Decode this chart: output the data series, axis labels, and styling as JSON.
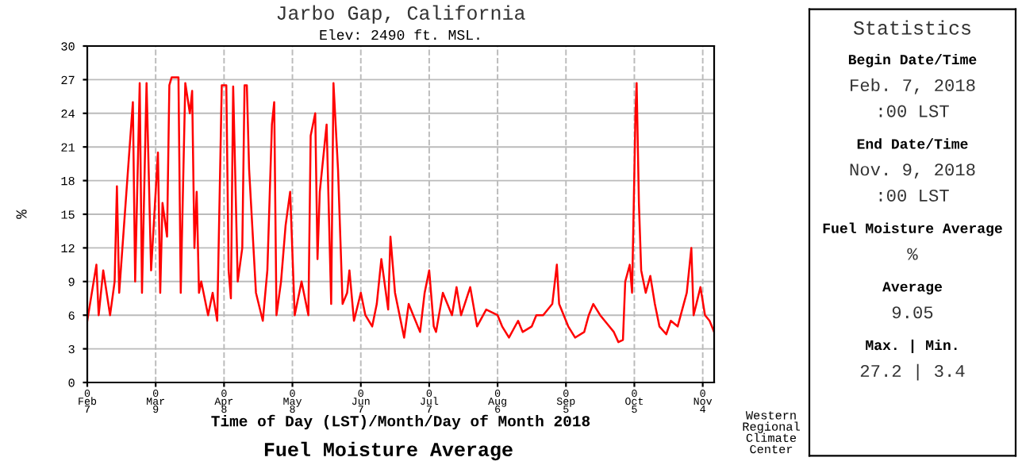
{
  "chart_data": [
    {
      "type": "line",
      "title": "Jarbo Gap, California",
      "subtitle": "Elev: 2490 ft. MSL.",
      "xlabel": "Time of Day (LST)/Month/Day of Month 2018",
      "ylabel": "%",
      "annotations": [
        "Fuel Moisture Average",
        "Western\nRegional\nClimate\nCenter"
      ],
      "series": [
        {
          "color": "#ff0000",
          "x": [
            "2018-02-07",
            "2018-02-11",
            "2018-02-12",
            "2018-02-14",
            "2018-02-17",
            "2018-02-19",
            "2018-02-20",
            "2018-02-21",
            "2018-02-27",
            "2018-02-28",
            "2018-03-02",
            "2018-03-03",
            "2018-03-05",
            "2018-03-07",
            "2018-03-10",
            "2018-03-11",
            "2018-03-12",
            "2018-03-14",
            "2018-03-15",
            "2018-03-16",
            "2018-03-19",
            "2018-03-20",
            "2018-03-22",
            "2018-03-24",
            "2018-03-25",
            "2018-03-26",
            "2018-03-27",
            "2018-03-28",
            "2018-03-29",
            "2018-04-01",
            "2018-04-03",
            "2018-04-05",
            "2018-04-07",
            "2018-04-09",
            "2018-04-10",
            "2018-04-11",
            "2018-04-12",
            "2018-04-14",
            "2018-04-16",
            "2018-04-17",
            "2018-04-18",
            "2018-04-19",
            "2018-04-22",
            "2018-04-25",
            "2018-04-27",
            "2018-04-29",
            "2018-04-30",
            "2018-05-01",
            "2018-05-03",
            "2018-05-05",
            "2018-05-07",
            "2018-05-09",
            "2018-05-12",
            "2018-05-15",
            "2018-05-16",
            "2018-05-18",
            "2018-05-19",
            "2018-05-20",
            "2018-05-23",
            "2018-05-25",
            "2018-05-26",
            "2018-05-28",
            "2018-05-30",
            "2018-06-01",
            "2018-06-02",
            "2018-06-04",
            "2018-06-07",
            "2018-06-09",
            "2018-06-12",
            "2018-06-14",
            "2018-06-16",
            "2018-06-19",
            "2018-06-20",
            "2018-06-22",
            "2018-06-26",
            "2018-06-28",
            "2018-06-30",
            "2018-07-03",
            "2018-07-05",
            "2018-07-07",
            "2018-07-09",
            "2018-07-10",
            "2018-07-13",
            "2018-07-17",
            "2018-07-19",
            "2018-07-21",
            "2018-07-25",
            "2018-07-28",
            "2018-08-01",
            "2018-08-06",
            "2018-08-08",
            "2018-08-11",
            "2018-08-15",
            "2018-08-17",
            "2018-08-21",
            "2018-08-23",
            "2018-08-26",
            "2018-08-30",
            "2018-09-01",
            "2018-09-02",
            "2018-09-06",
            "2018-09-09",
            "2018-09-13",
            "2018-09-15",
            "2018-09-17",
            "2018-09-20",
            "2018-09-22",
            "2018-09-26",
            "2018-09-28",
            "2018-09-30",
            "2018-10-01",
            "2018-10-03",
            "2018-10-04",
            "2018-10-05T12:00",
            "2018-10-06",
            "2018-10-07",
            "2018-10-08",
            "2018-10-10",
            "2018-10-12",
            "2018-10-14",
            "2018-10-16",
            "2018-10-19",
            "2018-10-21",
            "2018-10-24",
            "2018-10-28",
            "2018-10-30",
            "2018-10-31",
            "2018-11-03",
            "2018-11-05",
            "2018-11-07",
            "2018-11-09"
          ],
          "values": [
            5.5,
            10.5,
            6,
            10,
            6,
            9,
            17.5,
            8,
            25,
            9,
            26.7,
            8,
            26.7,
            10,
            20.5,
            8,
            16,
            13,
            26.5,
            27.2,
            27.2,
            8,
            26.7,
            24,
            26,
            12,
            17,
            8,
            9,
            6,
            8,
            5.5,
            26.5,
            26.5,
            10,
            7.5,
            26.4,
            9,
            12,
            26.5,
            26.5,
            19,
            8,
            5.5,
            10,
            23,
            25,
            6,
            9,
            14,
            17,
            6,
            9,
            6,
            22,
            24,
            11,
            17,
            23,
            7,
            26.7,
            19,
            7,
            8,
            10,
            5.5,
            8,
            6,
            5,
            7,
            11,
            6.5,
            13,
            8,
            4,
            7,
            6,
            4.5,
            8,
            10,
            5,
            4.5,
            8,
            6,
            8.5,
            6,
            8.5,
            5,
            6.5,
            6,
            5,
            4,
            5.5,
            4.5,
            5,
            6,
            6,
            7,
            10.5,
            7,
            5,
            4,
            4.5,
            6,
            7,
            6,
            5.5,
            4.5,
            3.6,
            3.8,
            9,
            10.5,
            8,
            24,
            26.7,
            16,
            10,
            8,
            9.5,
            7,
            5,
            4.3,
            5.5,
            5,
            8,
            12,
            6,
            8.5,
            6,
            5.5,
            4.5
          ]
        }
      ],
      "xlim": [
        "2018-02-07",
        "2018-11-09"
      ],
      "xticks": [
        {
          "value": "2018-02-07",
          "label": "0\nFeb\n7"
        },
        {
          "value": "2018-03-09",
          "label": "0\nMar\n9"
        },
        {
          "value": "2018-04-08",
          "label": "0\nApr\n8"
        },
        {
          "value": "2018-05-08",
          "label": "0\nMay\n8"
        },
        {
          "value": "2018-06-07",
          "label": "0\nJun\n7"
        },
        {
          "value": "2018-07-07",
          "label": "0\nJul\n7"
        },
        {
          "value": "2018-08-06",
          "label": "0\nAug\n6"
        },
        {
          "value": "2018-09-05",
          "label": "0\nSep\n5"
        },
        {
          "value": "2018-10-05",
          "label": "0\nOct\n5"
        },
        {
          "value": "2018-11-04",
          "label": "0\nNov\n4"
        }
      ],
      "ylim": [
        0,
        30
      ],
      "yticks": [
        0,
        3,
        6,
        9,
        12,
        15,
        18,
        21,
        24,
        27,
        30
      ],
      "grid": true,
      "legend": false,
      "marker": "none",
      "line_style": "solid"
    },
    {
      "type": "other",
      "title": "Statistics",
      "annotations": [
        "Begin Date/Time",
        "Feb. 7, 2018",
        ":00 LST",
        "End Date/Time",
        "Nov. 9, 2018",
        ":00 LST",
        "Fuel Moisture Average",
        "%",
        "Average",
        "9.05",
        "Max. | Min.",
        "27.2 | 3.4"
      ]
    }
  ]
}
